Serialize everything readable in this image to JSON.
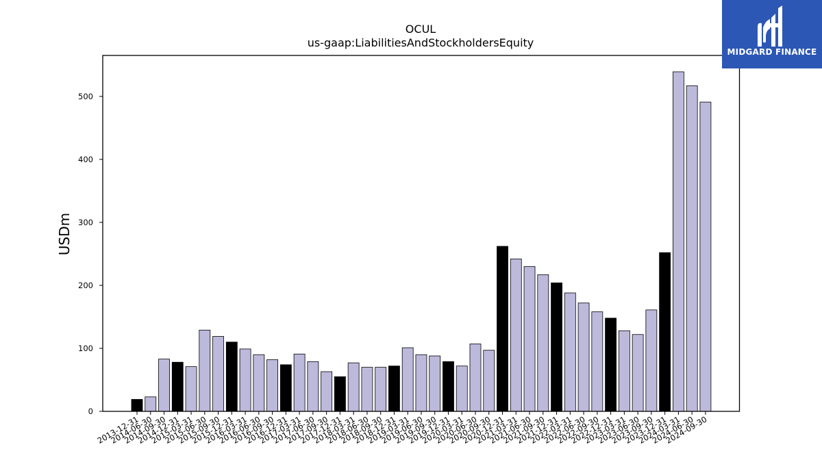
{
  "brand": {
    "name": "MIDGARD FINANCE",
    "bg_color": "#2c57b4"
  },
  "colors": {
    "regular_bar": "#bcb9db",
    "highlight_bar": "#000000",
    "edge": "#000000"
  },
  "chart_data": {
    "type": "bar",
    "title": "OCUL",
    "subtitle": "us-gaap:LiabilitiesAndStockholdersEquity",
    "ylabel": "USDm",
    "xlabel": "",
    "ylim": [
      0,
      565
    ],
    "yticks": [
      0,
      100,
      200,
      300,
      400,
      500
    ],
    "grid": false,
    "categories": [
      "2013-12-31",
      "2014-06-30",
      "2014-09-30",
      "2014-12-31",
      "2015-03-31",
      "2015-06-30",
      "2015-09-30",
      "2015-12-31",
      "2016-03-31",
      "2016-06-30",
      "2016-09-30",
      "2016-12-31",
      "2017-03-31",
      "2017-06-30",
      "2017-09-30",
      "2017-12-31",
      "2018-03-31",
      "2018-06-30",
      "2018-09-30",
      "2018-12-31",
      "2019-03-31",
      "2019-06-30",
      "2019-09-30",
      "2019-12-31",
      "2020-03-31",
      "2020-06-30",
      "2020-09-30",
      "2020-12-31",
      "2021-03-31",
      "2021-06-30",
      "2021-09-30",
      "2021-12-31",
      "2022-03-31",
      "2022-06-30",
      "2022-09-30",
      "2022-12-31",
      "2023-03-31",
      "2023-06-30",
      "2023-09-30",
      "2023-12-31",
      "2024-03-31",
      "2024-06-30",
      "2024-09-30"
    ],
    "values": [
      19,
      23,
      83,
      78,
      71,
      129,
      119,
      110,
      99,
      90,
      82,
      74,
      91,
      79,
      63,
      55,
      77,
      70,
      70,
      72,
      101,
      90,
      88,
      79,
      72,
      107,
      97,
      262,
      242,
      230,
      217,
      204,
      188,
      172,
      158,
      148,
      128,
      122,
      161,
      252,
      539,
      517,
      491
    ],
    "highlighted": [
      true,
      false,
      false,
      true,
      false,
      false,
      false,
      true,
      false,
      false,
      false,
      true,
      false,
      false,
      false,
      true,
      false,
      false,
      false,
      true,
      false,
      false,
      false,
      true,
      false,
      false,
      false,
      true,
      false,
      false,
      false,
      true,
      false,
      false,
      false,
      true,
      false,
      false,
      false,
      true,
      false,
      false,
      false
    ]
  }
}
